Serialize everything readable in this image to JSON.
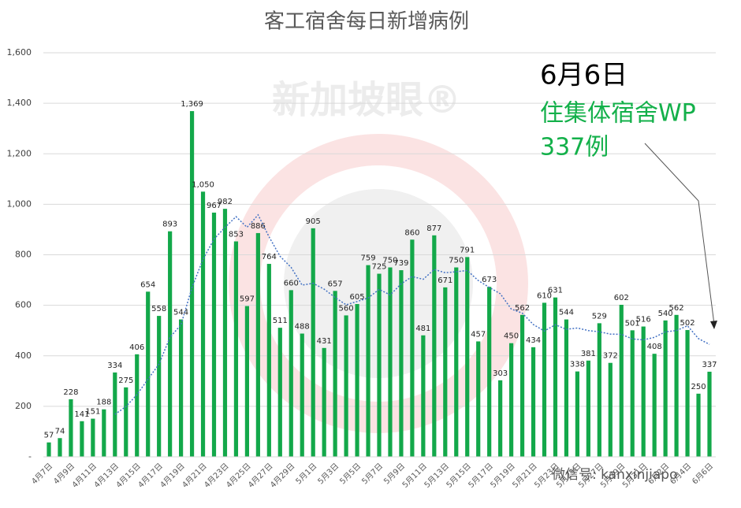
{
  "chart_data": {
    "type": "bar",
    "title": "客工宿舍每日新增病例",
    "categories": [
      "4月7日",
      null,
      "4月9日",
      null,
      "4月11日",
      null,
      "4月13日",
      null,
      "4月15日",
      null,
      "4月17日",
      null,
      "4月19日",
      null,
      "4月21日",
      null,
      "4月23日",
      null,
      "4月25日",
      null,
      "4月27日",
      null,
      "4月29日",
      null,
      "5月1日",
      null,
      "5月3日",
      null,
      "5月5日",
      null,
      "5月7日",
      null,
      "5月9日",
      null,
      "5月11日",
      null,
      "5月13日",
      null,
      "5月15日",
      null,
      "5月17日",
      null,
      "5月19日",
      null,
      "5月21日",
      null,
      "5月23日",
      null,
      "5月25日",
      null,
      "5月27日",
      null,
      "5月29日",
      null,
      "5月31日",
      null,
      "6月2日",
      null,
      "6月4日",
      null,
      "6月6日"
    ],
    "values": [
      57,
      74,
      228,
      141,
      151,
      188,
      334,
      275,
      406,
      654,
      558,
      893,
      544,
      1369,
      1050,
      967,
      982,
      853,
      597,
      886,
      764,
      511,
      660,
      488,
      905,
      431,
      657,
      560,
      605,
      759,
      725,
      750,
      739,
      860,
      481,
      877,
      671,
      750,
      791,
      457,
      673,
      303,
      450,
      562,
      434,
      610,
      631,
      544,
      338,
      381,
      529,
      372,
      602,
      501,
      516,
      408,
      540,
      562,
      502,
      250,
      337
    ],
    "value_labels": [
      "57",
      "74",
      "228",
      "141",
      "151",
      "188",
      "334",
      "275",
      "406",
      "654",
      "558",
      "893",
      "544",
      "1,369",
      "1,050",
      "967",
      "982",
      "853",
      "597",
      "886",
      "764",
      "511",
      "660",
      "488",
      "905",
      "431",
      "657",
      "560",
      "605",
      "759",
      "725",
      "750",
      "739",
      "860",
      "481",
      "877",
      "671",
      "750",
      "791",
      "457",
      "673",
      "303",
      "450",
      "562",
      "434",
      "610",
      "631",
      "544",
      "338",
      "381",
      "529",
      "372",
      "602",
      "501",
      "516",
      "408",
      "540",
      "562",
      "502",
      "250",
      "337"
    ],
    "color": "#13a84a",
    "trend": {
      "color": "#4472c4",
      "values": [
        null,
        null,
        null,
        null,
        null,
        null,
        168,
        199,
        246,
        307,
        367,
        473,
        523,
        671,
        782,
        862,
        909,
        951,
        909,
        958,
        871,
        794,
        750,
        680,
        687,
        664,
        631,
        602,
        615,
        629,
        663,
        641,
        685,
        714,
        703,
        742,
        729,
        733,
        738,
        698,
        671,
        646,
        585,
        569,
        524,
        498,
        523,
        505,
        510,
        500,
        495,
        486,
        485,
        467,
        463,
        473,
        495,
        500,
        519,
        468,
        445
      ]
    },
    "ylim": [
      0,
      1600
    ],
    "yticks": [
      {
        "value": 0,
        "label": "-"
      },
      200,
      400,
      600,
      800,
      {
        "value": 1000,
        "label": "1,000"
      },
      {
        "value": 1200,
        "label": "1,200"
      },
      {
        "value": 1400,
        "label": "1,400"
      },
      {
        "value": 1600,
        "label": "1,600"
      }
    ],
    "grid": true,
    "annotations": [
      "6月6日",
      "住集体宿舍WP",
      "337例"
    ],
    "watermarks": [
      "新加坡眼®",
      "微信号: kanxinjiapo"
    ]
  }
}
